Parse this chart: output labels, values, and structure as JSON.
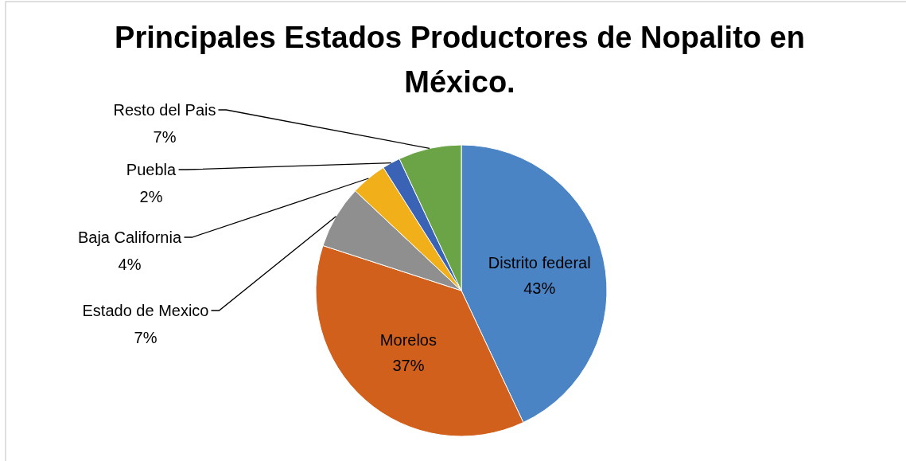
{
  "chart_data": {
    "type": "pie",
    "title": "Principales Estados Productores de Nopalito en México.",
    "categories": [
      "Distrito federal",
      "Morelos",
      "Estado de Mexico",
      "Baja California",
      "Puebla",
      "Resto del Pais"
    ],
    "values": [
      43,
      37,
      7,
      4,
      2,
      7
    ],
    "colors": [
      "#4a84c5",
      "#d0601c",
      "#8f8f8f",
      "#f1b01a",
      "#3b63b5",
      "#6aa446"
    ],
    "value_labels": [
      "43%",
      "37%",
      "7%",
      "4%",
      "2%",
      "7%"
    ],
    "legend": false
  }
}
